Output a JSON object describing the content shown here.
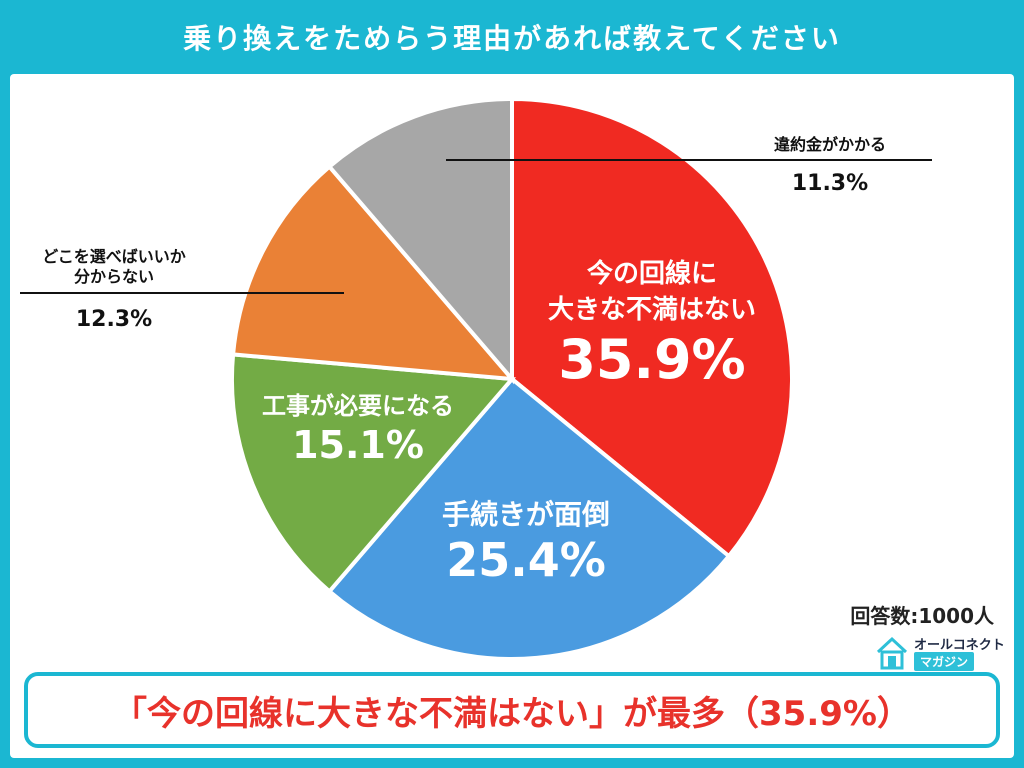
{
  "title": "乗り換えをためらう理由があれば教えてください",
  "respondents": "回答数:1000人",
  "logo": {
    "top": "オールコネクト",
    "bottom": "マガジン"
  },
  "banner": "「今の回線に大きな不満はない」が最多（35.9%）",
  "colors": {
    "frame": "#1bb7d2",
    "banner_text": "#e8322b"
  },
  "chart_data": {
    "type": "pie",
    "title": "乗り換えをためらう理由があれば教えてください",
    "slices": [
      {
        "label": "今の回線に大きな不満はない",
        "lines": [
          "今の回線に",
          "大きな不満はない"
        ],
        "value": 35.9,
        "value_label": "35.9%",
        "color": "#f02a22"
      },
      {
        "label": "手続きが面倒",
        "lines": [
          "手続きが面倒"
        ],
        "value": 25.4,
        "value_label": "25.4%",
        "color": "#4a9be0"
      },
      {
        "label": "工事が必要になる",
        "lines": [
          "工事が必要になる"
        ],
        "value": 15.1,
        "value_label": "15.1%",
        "color": "#73ab45"
      },
      {
        "label": "どこを選べばいいか分からない",
        "lines": [
          "どこを選べばいいか",
          "分からない"
        ],
        "value": 12.3,
        "value_label": "12.3%",
        "color": "#ea8136"
      },
      {
        "label": "違約金がかかる",
        "lines": [
          "違約金がかかる"
        ],
        "value": 11.3,
        "value_label": "11.3%",
        "color": "#a7a7a7"
      }
    ]
  }
}
